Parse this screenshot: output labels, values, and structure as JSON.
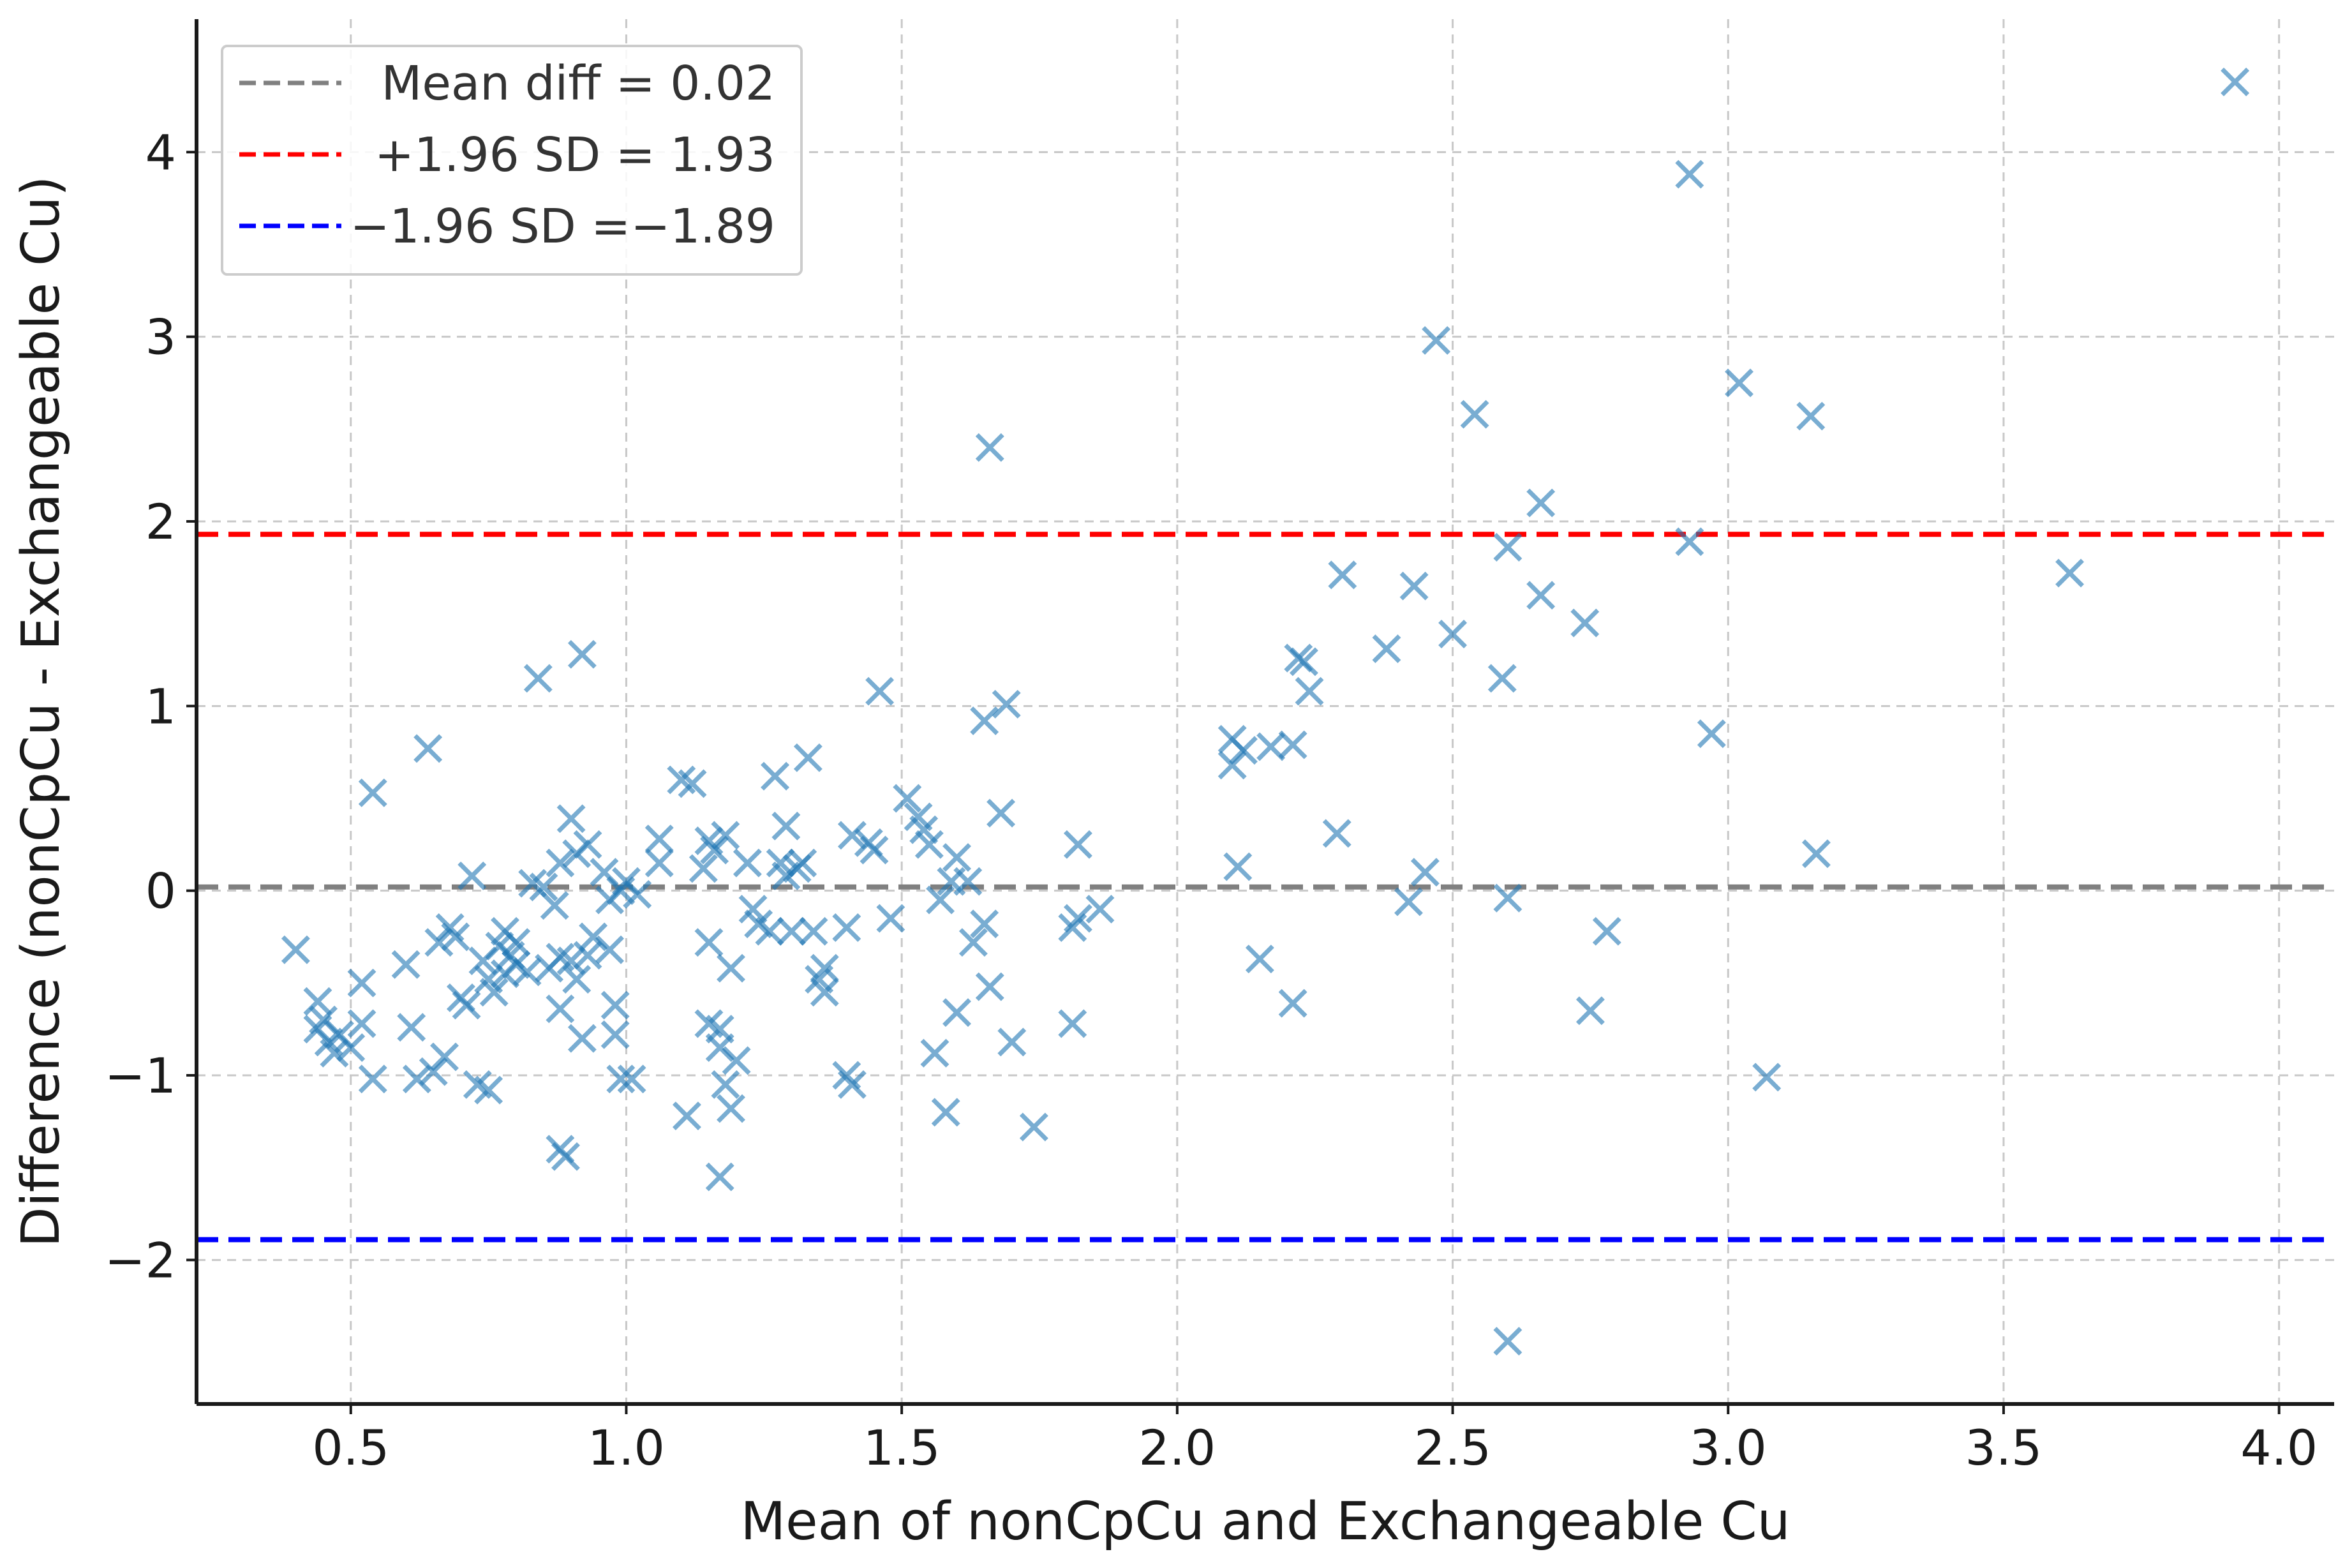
{
  "chart_data": {
    "type": "scatter",
    "title": "",
    "xlabel": "Mean of nonCpCu and Exchangeable Cu",
    "ylabel": "Difference (nonCpCu - Exchangeable Cu)",
    "xlim": [
      0.22,
      4.1
    ],
    "ylim": [
      -2.78,
      4.72
    ],
    "xticks": [
      0.5,
      1.0,
      1.5,
      2.0,
      2.5,
      3.0,
      3.5,
      4.0
    ],
    "xtick_labels": [
      "0.5",
      "1.0",
      "1.5",
      "2.0",
      "2.5",
      "3.0",
      "3.5",
      "4.0"
    ],
    "yticks": [
      -2,
      -1,
      0,
      1,
      2,
      3,
      4
    ],
    "ytick_labels": [
      "−2",
      "−1",
      "0",
      "1",
      "2",
      "3",
      "4"
    ],
    "grid": true,
    "legend_position": "top-left",
    "marker": "x",
    "colors": {
      "points": "#1f77b4",
      "mean_line": "#808080",
      "upper_line": "#ff0000",
      "lower_line": "#0000ff",
      "axis": "#1a1a1a",
      "grid": "#c8c8c8"
    },
    "reference_lines": [
      {
        "label": "Mean diff = 0.02",
        "y": 0.02,
        "color": "#808080"
      },
      {
        "label": "+1.96 SD = 1.93",
        "y": 1.93,
        "color": "#ff0000"
      },
      {
        "label": "−1.96 SD =−1.89",
        "y": -1.89,
        "color": "#0000ff"
      }
    ],
    "points": [
      [
        0.4,
        -0.32
      ],
      [
        0.44,
        -0.6
      ],
      [
        0.44,
        -0.75
      ],
      [
        0.45,
        -0.7
      ],
      [
        0.46,
        -0.82
      ],
      [
        0.47,
        -0.88
      ],
      [
        0.48,
        -0.78
      ],
      [
        0.5,
        -0.85
      ],
      [
        0.52,
        -0.5
      ],
      [
        0.52,
        -0.72
      ],
      [
        0.54,
        -1.02
      ],
      [
        0.54,
        0.53
      ],
      [
        0.6,
        -0.4
      ],
      [
        0.61,
        -0.74
      ],
      [
        0.62,
        -1.02
      ],
      [
        0.64,
        0.77
      ],
      [
        0.65,
        -0.98
      ],
      [
        0.66,
        -0.28
      ],
      [
        0.67,
        -0.9
      ],
      [
        0.68,
        -0.2
      ],
      [
        0.69,
        -0.25
      ],
      [
        0.7,
        -0.58
      ],
      [
        0.71,
        -0.62
      ],
      [
        0.72,
        0.08
      ],
      [
        0.73,
        -1.05
      ],
      [
        0.74,
        -0.38
      ],
      [
        0.75,
        -1.08
      ],
      [
        0.75,
        -0.48
      ],
      [
        0.76,
        -0.55
      ],
      [
        0.77,
        -0.3
      ],
      [
        0.78,
        -0.45
      ],
      [
        0.78,
        -0.22
      ],
      [
        0.79,
        -0.35
      ],
      [
        0.8,
        -0.28
      ],
      [
        0.8,
        -0.4
      ],
      [
        0.82,
        -0.44
      ],
      [
        0.83,
        0.04
      ],
      [
        0.84,
        1.15
      ],
      [
        0.85,
        0.02
      ],
      [
        0.86,
        -0.42
      ],
      [
        0.87,
        -0.08
      ],
      [
        0.88,
        -0.36
      ],
      [
        0.88,
        -0.64
      ],
      [
        0.88,
        0.15
      ],
      [
        0.88,
        -1.4
      ],
      [
        0.89,
        -1.44
      ],
      [
        0.9,
        -0.38
      ],
      [
        0.9,
        0.39
      ],
      [
        0.91,
        -0.48
      ],
      [
        0.91,
        0.2
      ],
      [
        0.92,
        -0.8
      ],
      [
        0.92,
        1.28
      ],
      [
        0.93,
        -0.35
      ],
      [
        0.93,
        0.25
      ],
      [
        0.94,
        -0.25
      ],
      [
        0.96,
        0.1
      ],
      [
        0.97,
        -0.05
      ],
      [
        0.97,
        -0.32
      ],
      [
        0.98,
        -0.78
      ],
      [
        0.98,
        -0.62
      ],
      [
        0.99,
        -1.02
      ],
      [
        0.99,
        0.0
      ],
      [
        1.0,
        0.05
      ],
      [
        1.01,
        -1.02
      ],
      [
        1.02,
        -0.02
      ],
      [
        1.06,
        0.28
      ],
      [
        1.06,
        0.15
      ],
      [
        1.1,
        0.6
      ],
      [
        1.11,
        -1.22
      ],
      [
        1.12,
        0.58
      ],
      [
        1.14,
        0.12
      ],
      [
        1.15,
        -0.72
      ],
      [
        1.15,
        0.27
      ],
      [
        1.15,
        -0.28
      ],
      [
        1.16,
        0.22
      ],
      [
        1.17,
        -1.55
      ],
      [
        1.17,
        -0.85
      ],
      [
        1.17,
        -0.75
      ],
      [
        1.18,
        0.3
      ],
      [
        1.18,
        -1.05
      ],
      [
        1.19,
        -1.18
      ],
      [
        1.19,
        -0.42
      ],
      [
        1.2,
        -0.92
      ],
      [
        1.22,
        0.15
      ],
      [
        1.23,
        -0.1
      ],
      [
        1.24,
        -0.18
      ],
      [
        1.26,
        -0.22
      ],
      [
        1.27,
        0.62
      ],
      [
        1.28,
        0.15
      ],
      [
        1.29,
        0.35
      ],
      [
        1.29,
        0.08
      ],
      [
        1.3,
        -0.22
      ],
      [
        1.31,
        0.12
      ],
      [
        1.32,
        0.15
      ],
      [
        1.33,
        0.72
      ],
      [
        1.34,
        -0.22
      ],
      [
        1.35,
        -0.48
      ],
      [
        1.36,
        -0.42
      ],
      [
        1.36,
        -0.55
      ],
      [
        1.4,
        -0.2
      ],
      [
        1.4,
        -1.0
      ],
      [
        1.41,
        0.3
      ],
      [
        1.41,
        -1.05
      ],
      [
        1.44,
        0.26
      ],
      [
        1.45,
        0.22
      ],
      [
        1.46,
        1.08
      ],
      [
        1.48,
        -0.15
      ],
      [
        1.51,
        0.5
      ],
      [
        1.53,
        0.4
      ],
      [
        1.54,
        0.33
      ],
      [
        1.55,
        0.25
      ],
      [
        1.56,
        -0.88
      ],
      [
        1.57,
        -0.05
      ],
      [
        1.58,
        -1.2
      ],
      [
        1.59,
        0.05
      ],
      [
        1.6,
        0.18
      ],
      [
        1.6,
        -0.66
      ],
      [
        1.62,
        0.05
      ],
      [
        1.63,
        -0.28
      ],
      [
        1.65,
        -0.18
      ],
      [
        1.65,
        0.92
      ],
      [
        1.66,
        2.4
      ],
      [
        1.66,
        -0.52
      ],
      [
        1.68,
        0.42
      ],
      [
        1.69,
        1.01
      ],
      [
        1.7,
        -0.82
      ],
      [
        1.74,
        -1.28
      ],
      [
        1.81,
        -0.72
      ],
      [
        1.81,
        -0.2
      ],
      [
        1.82,
        0.25
      ],
      [
        1.82,
        -0.15
      ],
      [
        1.86,
        -0.1
      ],
      [
        2.1,
        0.68
      ],
      [
        2.1,
        0.82
      ],
      [
        2.11,
        0.13
      ],
      [
        2.12,
        0.76
      ],
      [
        2.15,
        -0.37
      ],
      [
        2.17,
        0.78
      ],
      [
        2.21,
        0.79
      ],
      [
        2.21,
        -0.61
      ],
      [
        2.22,
        1.26
      ],
      [
        2.23,
        1.24
      ],
      [
        2.24,
        1.08
      ],
      [
        2.29,
        0.31
      ],
      [
        2.3,
        1.71
      ],
      [
        2.38,
        1.31
      ],
      [
        2.42,
        -0.06
      ],
      [
        2.43,
        1.65
      ],
      [
        2.45,
        0.1
      ],
      [
        2.47,
        2.98
      ],
      [
        2.5,
        1.39
      ],
      [
        2.54,
        2.58
      ],
      [
        2.59,
        1.15
      ],
      [
        2.6,
        1.86
      ],
      [
        2.6,
        -0.04
      ],
      [
        2.6,
        -2.44
      ],
      [
        2.66,
        2.1
      ],
      [
        2.66,
        1.6
      ],
      [
        2.74,
        1.45
      ],
      [
        2.75,
        -0.65
      ],
      [
        2.78,
        -0.22
      ],
      [
        2.93,
        3.88
      ],
      [
        2.93,
        1.89
      ],
      [
        2.97,
        0.85
      ],
      [
        3.02,
        2.75
      ],
      [
        3.07,
        -1.01
      ],
      [
        3.15,
        2.57
      ],
      [
        3.16,
        0.2
      ],
      [
        3.62,
        1.72
      ],
      [
        3.92,
        4.38
      ]
    ]
  }
}
